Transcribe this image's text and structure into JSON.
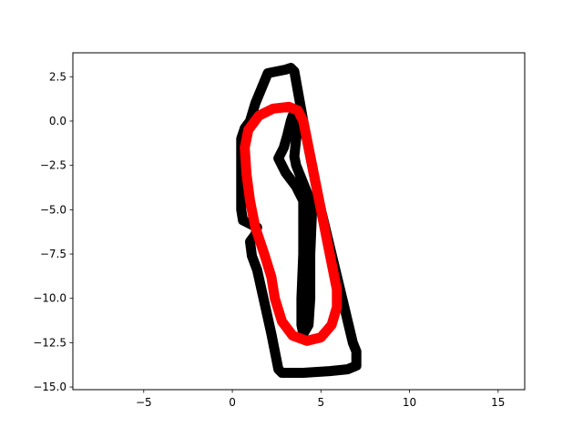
{
  "chart_data": {
    "type": "line",
    "title": "",
    "xlabel": "",
    "ylabel": "",
    "xlim": [
      -9,
      16.5
    ],
    "ylim": [
      -15.15,
      3.85
    ],
    "grid": false,
    "x_ticks": [
      -5,
      0,
      5,
      10,
      15
    ],
    "y_ticks": [
      2.5,
      0.0,
      -2.5,
      -5.0,
      -7.5,
      -10.0,
      -12.5,
      -15.0
    ],
    "x_tick_labels": [
      "−5",
      "0",
      "5",
      "10",
      "15"
    ],
    "y_tick_labels": [
      "2.5",
      "0.0",
      "−2.5",
      "−5.0",
      "−7.5",
      "−10.0",
      "−12.5",
      "−15.0"
    ],
    "series": [
      {
        "color": "#000000",
        "points": [
          [
            2.0,
            2.7
          ],
          [
            3.0,
            2.9
          ],
          [
            3.3,
            3.0
          ],
          [
            3.5,
            2.8
          ],
          [
            4.0,
            0.0
          ],
          [
            4.5,
            -2.5
          ],
          [
            5.0,
            -5.0
          ],
          [
            5.6,
            -7.5
          ],
          [
            6.2,
            -10.0
          ],
          [
            6.8,
            -12.5
          ],
          [
            7.0,
            -13.0
          ],
          [
            7.0,
            -13.8
          ],
          [
            6.5,
            -14.0
          ],
          [
            5.5,
            -14.1
          ],
          [
            4.0,
            -14.2
          ],
          [
            2.8,
            -14.2
          ],
          [
            2.6,
            -14.0
          ],
          [
            2.2,
            -12.0
          ],
          [
            1.8,
            -10.2
          ],
          [
            1.4,
            -8.4
          ],
          [
            1.1,
            -7.6
          ],
          [
            1.0,
            -6.8
          ],
          [
            1.3,
            -6.4
          ],
          [
            1.4,
            -6.0
          ],
          [
            1.0,
            -5.8
          ],
          [
            0.6,
            -5.6
          ],
          [
            0.5,
            -5.0
          ],
          [
            0.5,
            -2.5
          ],
          [
            0.5,
            -1.0
          ],
          [
            0.7,
            -0.4
          ],
          [
            1.0,
            0.0
          ],
          [
            1.3,
            1.0
          ],
          [
            2.0,
            2.7
          ]
        ]
      },
      {
        "color": "#000000",
        "points": [
          [
            4.0,
            -12.0
          ],
          [
            4.3,
            -11.5
          ],
          [
            4.4,
            -10.0
          ],
          [
            4.4,
            -7.5
          ],
          [
            4.5,
            -5.0
          ],
          [
            4.4,
            -4.5
          ],
          [
            4.2,
            -4.0
          ],
          [
            3.6,
            -2.5
          ],
          [
            3.5,
            -2.0
          ],
          [
            3.6,
            -1.0
          ],
          [
            3.8,
            0.0
          ],
          [
            3.7,
            0.3
          ],
          [
            3.4,
            0.3
          ],
          [
            3.3,
            0.0
          ],
          [
            3.1,
            -0.8
          ],
          [
            2.9,
            -1.5
          ],
          [
            2.6,
            -2.1
          ],
          [
            3.0,
            -2.9
          ],
          [
            3.6,
            -3.7
          ],
          [
            4.0,
            -4.5
          ],
          [
            4.0,
            -5.0
          ],
          [
            4.0,
            -7.5
          ],
          [
            3.9,
            -10.0
          ],
          [
            3.9,
            -11.5
          ],
          [
            4.0,
            -12.0
          ]
        ]
      },
      {
        "color": "#ff0000",
        "points": [
          [
            3.2,
            0.8
          ],
          [
            3.7,
            0.6
          ],
          [
            4.0,
            0.0
          ],
          [
            4.5,
            -2.5
          ],
          [
            5.0,
            -5.0
          ],
          [
            5.5,
            -7.5
          ],
          [
            5.9,
            -9.5
          ],
          [
            5.9,
            -10.5
          ],
          [
            5.6,
            -11.5
          ],
          [
            5.0,
            -12.2
          ],
          [
            4.2,
            -12.4
          ],
          [
            3.4,
            -12.1
          ],
          [
            2.8,
            -11.3
          ],
          [
            2.4,
            -10.0
          ],
          [
            2.2,
            -8.8
          ],
          [
            1.8,
            -7.5
          ],
          [
            1.3,
            -6.0
          ],
          [
            1.0,
            -4.5
          ],
          [
            0.8,
            -3.0
          ],
          [
            0.7,
            -1.5
          ],
          [
            0.9,
            -0.5
          ],
          [
            1.5,
            0.3
          ],
          [
            2.3,
            0.7
          ],
          [
            3.2,
            0.8
          ]
        ]
      }
    ]
  }
}
